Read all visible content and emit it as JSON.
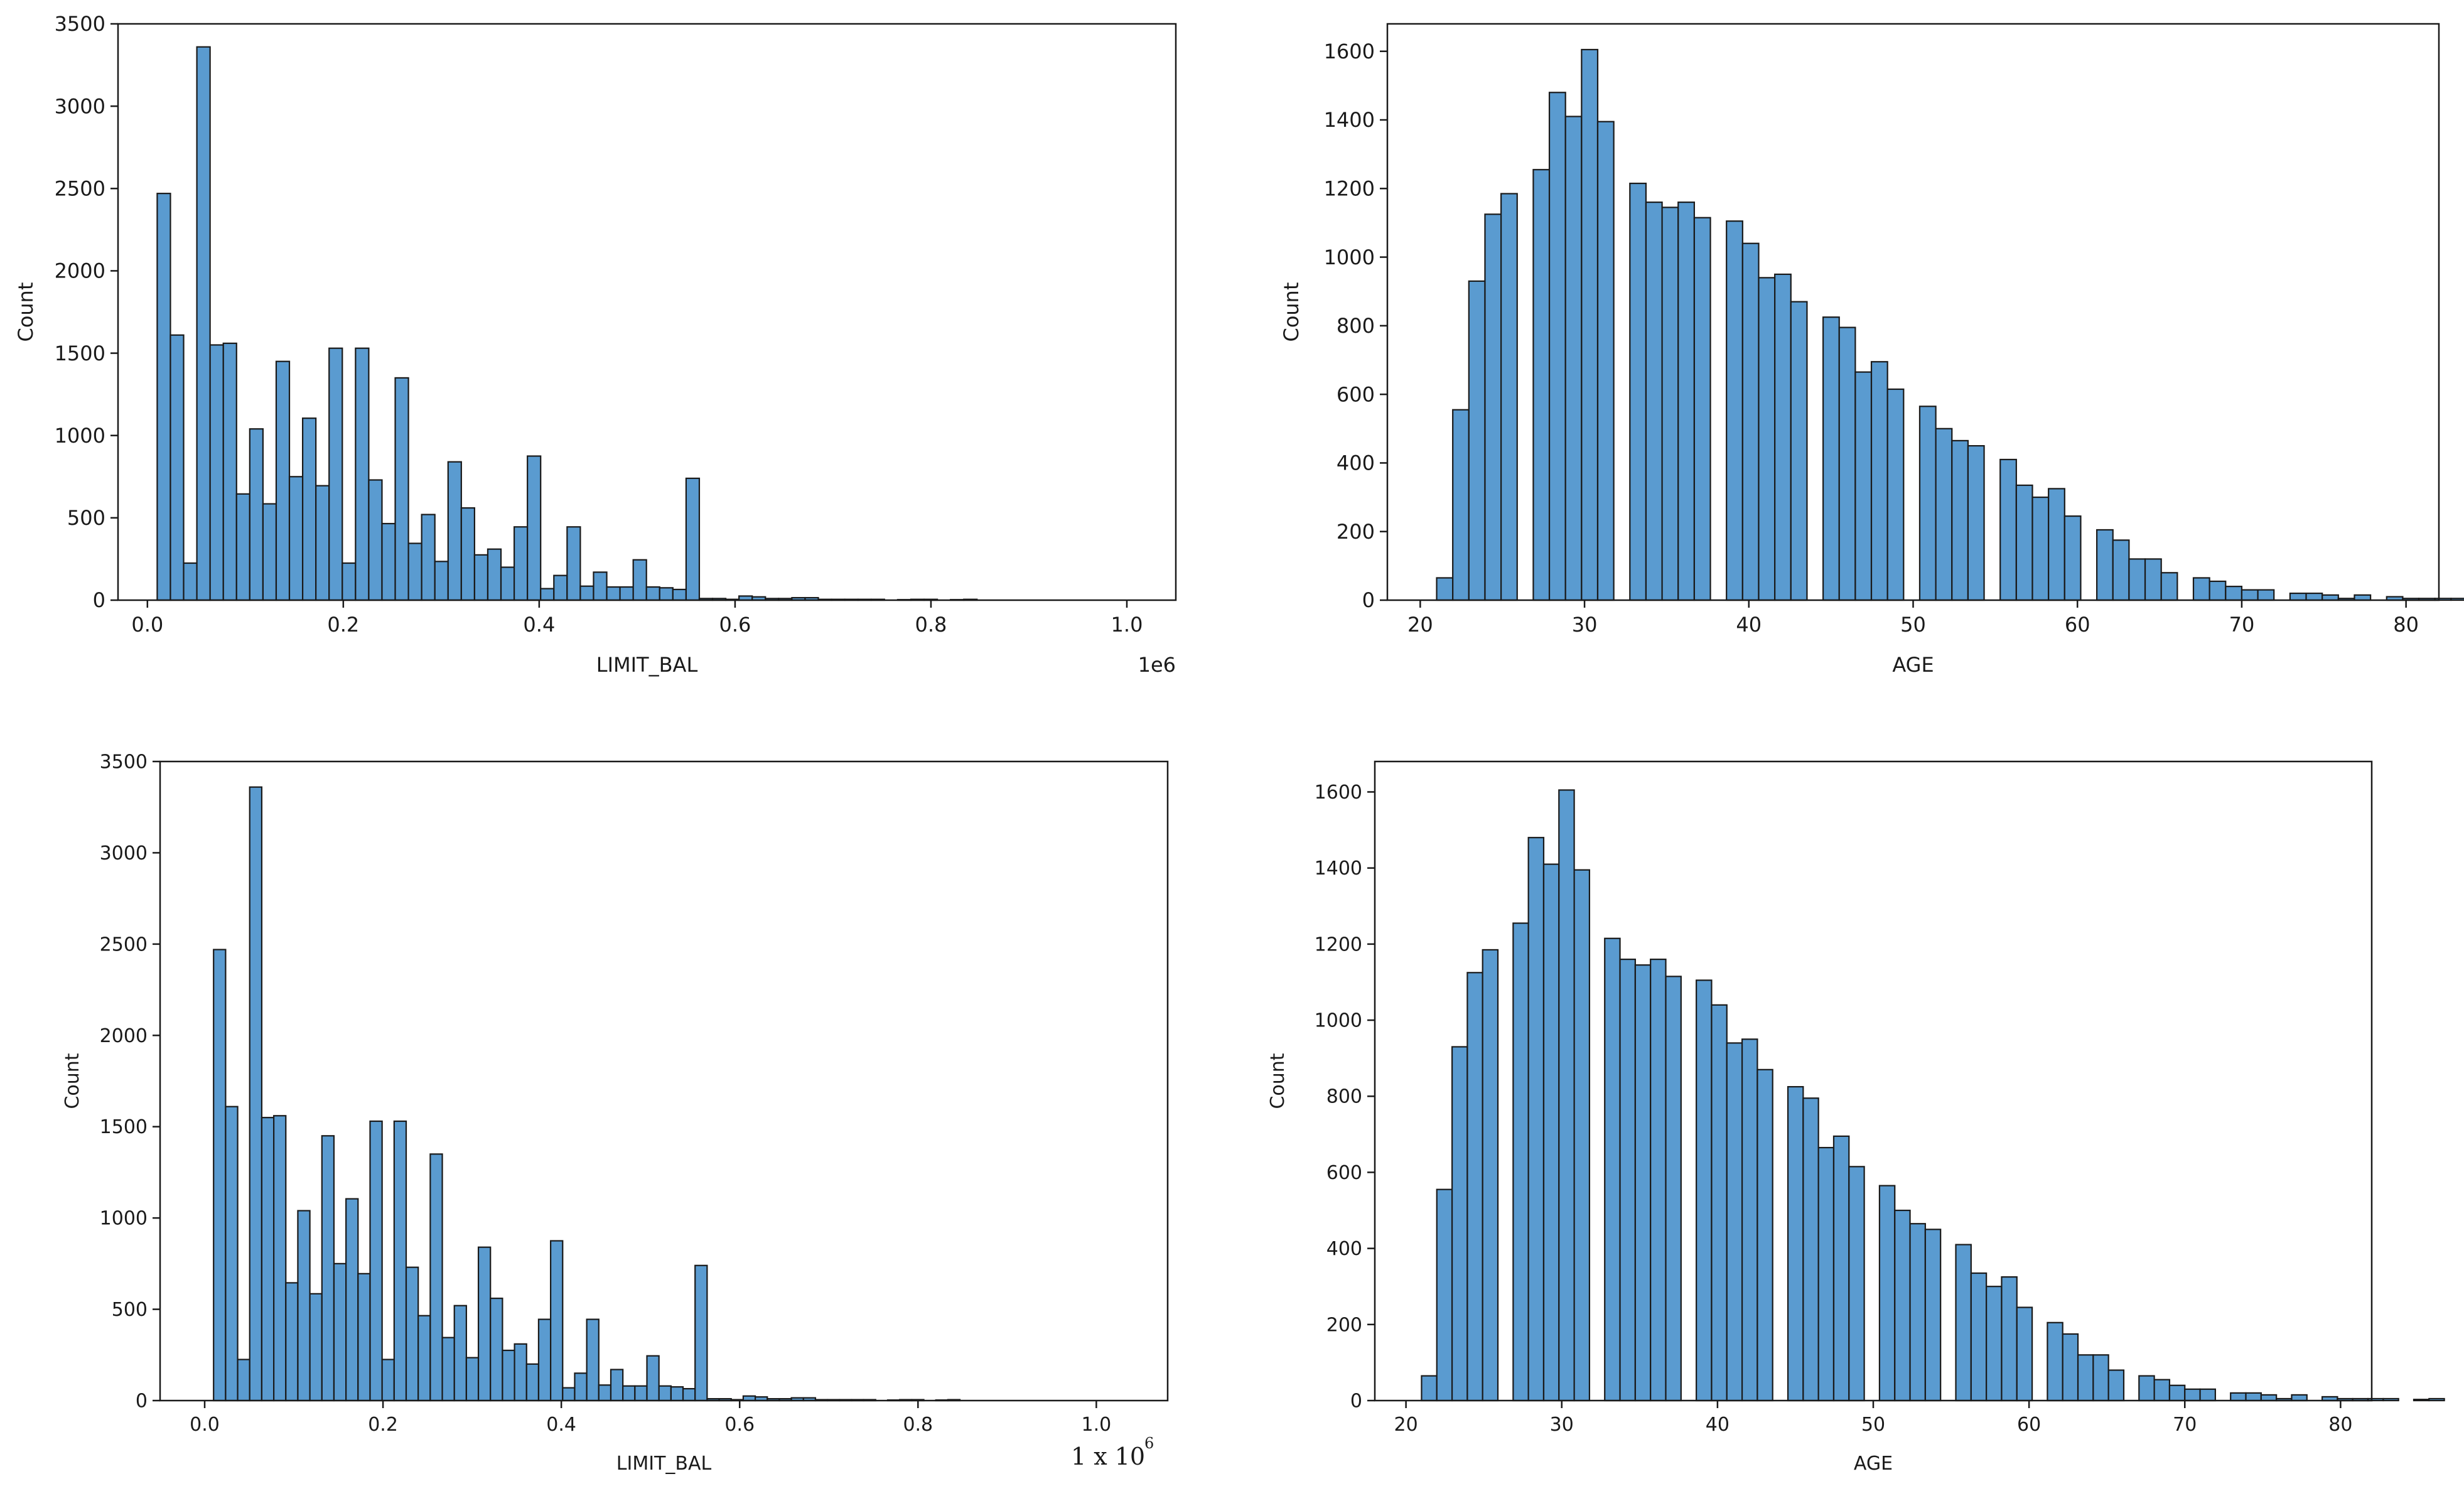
{
  "colors": {
    "bar_fill": "#5a9bd0",
    "bar_edge": "#1a1a1a",
    "frame": "#1a1a1a"
  },
  "chart_data": [
    {
      "type": "bar",
      "subplot": "top-left",
      "xlabel": "LIMIT_BAL",
      "ylabel": "Count",
      "offset_text": "1e6",
      "xlim": [
        -0.03,
        1.05
      ],
      "ylim": [
        0,
        3500
      ],
      "xticks": [
        0.0,
        0.2,
        0.4,
        0.6,
        0.8,
        1.0
      ],
      "xtick_labels": [
        "0.0",
        "0.2",
        "0.4",
        "0.6",
        "0.8",
        "1.0"
      ],
      "yticks": [
        0,
        500,
        1000,
        1500,
        2000,
        2500,
        3000,
        3500
      ],
      "ytick_labels": [
        "0",
        "500",
        "1000",
        "1500",
        "2000",
        "2500",
        "3000",
        "3500"
      ],
      "bin_start": 0.01,
      "bin_width": 0.0135,
      "values": [
        2470,
        1610,
        225,
        3360,
        1550,
        1560,
        645,
        1040,
        585,
        1450,
        750,
        1105,
        695,
        1530,
        225,
        1530,
        730,
        465,
        1350,
        345,
        520,
        235,
        840,
        560,
        275,
        310,
        200,
        445,
        875,
        70,
        150,
        445,
        85,
        170,
        80,
        80,
        245,
        80,
        75,
        65,
        740,
        10,
        10,
        5,
        25,
        20,
        10,
        10,
        15,
        15,
        5,
        5,
        5,
        5,
        5,
        0,
        3,
        5,
        5,
        0,
        3,
        5,
        0,
        0,
        0,
        0,
        0,
        0,
        0,
        0,
        0,
        0,
        0,
        0
      ]
    },
    {
      "type": "bar",
      "subplot": "top-right",
      "xlabel": "AGE",
      "ylabel": "Count",
      "xlim": [
        18,
        82
      ],
      "ylim": [
        0,
        1680
      ],
      "xticks": [
        20,
        30,
        40,
        50,
        60,
        70,
        80
      ],
      "xtick_labels": [
        "20",
        "30",
        "40",
        "50",
        "60",
        "70",
        "80"
      ],
      "yticks": [
        0,
        200,
        400,
        600,
        800,
        1000,
        1200,
        1400,
        1600
      ],
      "ytick_labels": [
        "0",
        "200",
        "400",
        "600",
        "800",
        "1000",
        "1200",
        "1400",
        "1600"
      ],
      "bin_start": 21,
      "bin_width": 0.98,
      "values": [
        65,
        555,
        930,
        1125,
        1185,
        0,
        1255,
        1480,
        1410,
        1605,
        1395,
        0,
        1215,
        1160,
        1145,
        1160,
        1115,
        0,
        1105,
        1040,
        940,
        950,
        870,
        0,
        825,
        795,
        665,
        695,
        615,
        0,
        565,
        500,
        465,
        450,
        0,
        410,
        335,
        300,
        325,
        245,
        0,
        205,
        175,
        120,
        120,
        80,
        0,
        65,
        55,
        40,
        30,
        30,
        0,
        20,
        20,
        15,
        5,
        15,
        0,
        10,
        5,
        5,
        5,
        5,
        0,
        3,
        5,
        0,
        0,
        0,
        0,
        3,
        0
      ]
    },
    {
      "type": "bar",
      "subplot": "bottom-left",
      "xlabel": "LIMIT_BAL",
      "ylabel": "Count",
      "offset_text": "1 x 10",
      "offset_exp": "6",
      "xlim": [
        -0.05,
        1.08
      ],
      "ylim": [
        0,
        3500
      ],
      "xticks": [
        0.0,
        0.2,
        0.4,
        0.6,
        0.8,
        1.0
      ],
      "xtick_labels": [
        "0.0",
        "0.2",
        "0.4",
        "0.6",
        "0.8",
        "1.0"
      ],
      "yticks": [
        0,
        500,
        1000,
        1500,
        2000,
        2500,
        3000,
        3500
      ],
      "ytick_labels": [
        "0",
        "500",
        "1000",
        "1500",
        "2000",
        "2500",
        "3000",
        "3500"
      ],
      "bin_start": 0.01,
      "bin_width": 0.0135,
      "values": [
        2470,
        1610,
        225,
        3360,
        1550,
        1560,
        645,
        1040,
        585,
        1450,
        750,
        1105,
        695,
        1530,
        225,
        1530,
        730,
        465,
        1350,
        345,
        520,
        235,
        840,
        560,
        275,
        310,
        200,
        445,
        875,
        70,
        150,
        445,
        85,
        170,
        80,
        80,
        245,
        80,
        75,
        65,
        740,
        10,
        10,
        5,
        25,
        20,
        10,
        10,
        15,
        15,
        5,
        5,
        5,
        5,
        5,
        0,
        3,
        5,
        5,
        0,
        3,
        5,
        0,
        0,
        0,
        0,
        0,
        0,
        0,
        0,
        0,
        0,
        0,
        0
      ]
    },
    {
      "type": "bar",
      "subplot": "bottom-right",
      "xlabel": "AGE",
      "ylabel": "Count",
      "xlim": [
        18,
        82
      ],
      "ylim": [
        0,
        1680
      ],
      "xticks": [
        20,
        30,
        40,
        50,
        60,
        70,
        80
      ],
      "xtick_labels": [
        "20",
        "30",
        "40",
        "50",
        "60",
        "70",
        "80"
      ],
      "yticks": [
        0,
        200,
        400,
        600,
        800,
        1000,
        1200,
        1400,
        1600
      ],
      "ytick_labels": [
        "0",
        "200",
        "400",
        "600",
        "800",
        "1000",
        "1200",
        "1400",
        "1600"
      ],
      "bin_start": 21,
      "bin_width": 0.98,
      "values": [
        65,
        555,
        930,
        1125,
        1185,
        0,
        1255,
        1480,
        1410,
        1605,
        1395,
        0,
        1215,
        1160,
        1145,
        1160,
        1115,
        0,
        1105,
        1040,
        940,
        950,
        870,
        0,
        825,
        795,
        665,
        695,
        615,
        0,
        565,
        500,
        465,
        450,
        0,
        410,
        335,
        300,
        325,
        245,
        0,
        205,
        175,
        120,
        120,
        80,
        0,
        65,
        55,
        40,
        30,
        30,
        0,
        20,
        20,
        15,
        5,
        15,
        0,
        10,
        5,
        5,
        5,
        5,
        0,
        3,
        5,
        0,
        0,
        0,
        0,
        3,
        0
      ]
    }
  ]
}
